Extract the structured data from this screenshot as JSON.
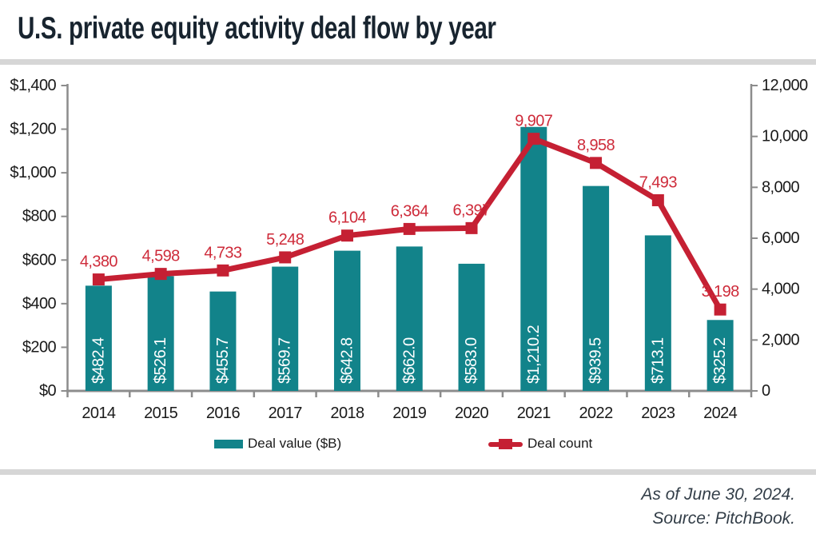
{
  "page": {
    "title": "U.S. private equity activity deal flow by year"
  },
  "legend": {
    "deal_value_label": "Deal value ($B)",
    "deal_count_label": "Deal count"
  },
  "footer": {
    "as_of": "As of June 30, 2024.",
    "source": "Source: PitchBook."
  },
  "colors": {
    "bar_teal": "#12838A",
    "line_red": "#C52033",
    "label_red": "#CE2B3A",
    "title_navy": "#18242F",
    "axis_gray": "#8C8C8C",
    "tick_text": "#1A1A1A",
    "divider_gray": "#D6D6D6",
    "footer_text": "#333E48",
    "bar_label_white": "#FFFFFF"
  },
  "chart_data": {
    "type": "combo",
    "categories": [
      "2014",
      "2015",
      "2016",
      "2017",
      "2018",
      "2019",
      "2020",
      "2021",
      "2022",
      "2023",
      "2024"
    ],
    "series": [
      {
        "name": "Deal value ($B)",
        "type": "bar",
        "axis": "left",
        "values": [
          482.4,
          526.1,
          455.7,
          569.7,
          642.8,
          662.0,
          583.0,
          1210.2,
          939.5,
          713.1,
          325.2
        ],
        "labels": [
          "$482.4",
          "$526.1",
          "$455.7",
          "$569.7",
          "$642.8",
          "$662.0",
          "$583.0",
          "$1,210.2",
          "$939.5",
          "$713.1",
          "$325.2"
        ]
      },
      {
        "name": "Deal count",
        "type": "line",
        "axis": "right",
        "values": [
          4380,
          4598,
          4733,
          5248,
          6104,
          6364,
          6397,
          9907,
          8958,
          7493,
          3198
        ],
        "labels": [
          "4,380",
          "4,598",
          "4,733",
          "5,248",
          "6,104",
          "6,364",
          "6,397",
          "9,907",
          "8,958",
          "7,493",
          "3,198"
        ]
      }
    ],
    "left_axis": {
      "min": 0,
      "max": 1400,
      "step": 200,
      "tick_labels": [
        "$0",
        "$200",
        "$400",
        "$600",
        "$800",
        "$1,000",
        "$1,200",
        "$1,400"
      ]
    },
    "right_axis": {
      "min": 0,
      "max": 12000,
      "step": 2000,
      "tick_labels": [
        "0",
        "2,000",
        "4,000",
        "6,000",
        "8,000",
        "10,000",
        "12,000"
      ]
    },
    "grid": false,
    "legend_position": "bottom"
  }
}
